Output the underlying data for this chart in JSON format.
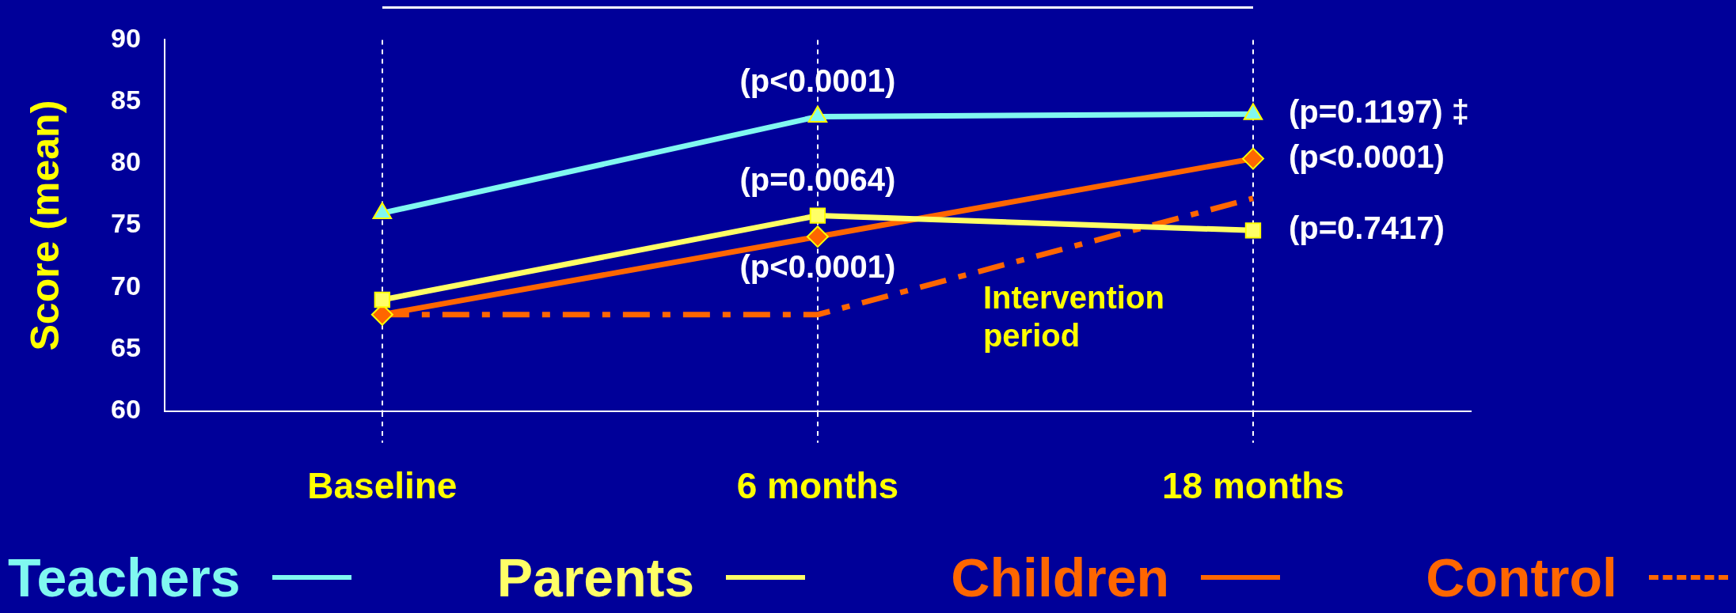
{
  "chart_data": {
    "type": "line",
    "ylabel": "Score (mean)",
    "categories": [
      "Baseline",
      "6 months",
      "18 months"
    ],
    "series": [
      {
        "name": "Teachers",
        "color": "#80f8f0",
        "values": [
          76,
          83.8,
          84
        ],
        "marker": "triangle",
        "line_style": "solid"
      },
      {
        "name": "Parents",
        "color": "#ffff66",
        "values": [
          69,
          75.8,
          74.6
        ],
        "marker": "square",
        "line_style": "solid"
      },
      {
        "name": "Children",
        "color": "#ff6600",
        "values": [
          67.8,
          74.1,
          80.4
        ],
        "marker": "diamond",
        "line_style": "solid"
      },
      {
        "name": "Control",
        "color": "#ff6600",
        "values": [
          67.8,
          67.8,
          77.2
        ],
        "marker": "none",
        "line_style": "dashed"
      }
    ],
    "ylim": [
      60,
      90
    ],
    "yticks": [
      60,
      65,
      70,
      75,
      80,
      85,
      90
    ],
    "grid": "x",
    "legend": "bottom",
    "annotations": [
      "(p<0.0001)",
      "(p=0.0064)",
      "(p<0.0001)",
      "Intervention period",
      {
        "text": "(p=0.1197) ‡",
        "x": "18 months",
        "y": 84
      },
      {
        "text": "(p<0.0001)",
        "x": "18 months",
        "y": 80.4
      },
      {
        "text": "(p=0.7417)",
        "x": "18 months",
        "y": 74.6
      }
    ]
  }
}
